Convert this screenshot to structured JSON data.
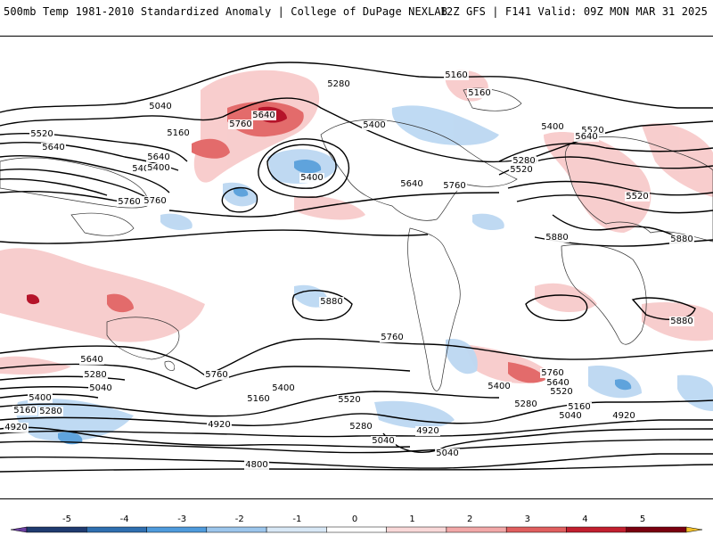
{
  "header": {
    "title": "500mb Temp 1981-2010 Standardized Anomaly | College of DuPage NEXLAB",
    "run_info": "12Z GFS | F141 Valid: 09Z MON MAR 31 2025"
  },
  "map": {
    "variable": "500mb Temp Standardized Anomaly",
    "contour_variable": "500mb height",
    "contour_labels": [
      "5040",
      "5280",
      "5160",
      "5160",
      "5520",
      "5640",
      "5400",
      "5400",
      "5640",
      "5760",
      "5520",
      "5640",
      "5400",
      "5280",
      "5160",
      "5760",
      "5400",
      "5640",
      "5760",
      "5280",
      "5520",
      "5400",
      "5640",
      "5760",
      "5520",
      "5880",
      "5880",
      "5880",
      "5880",
      "5760",
      "5760",
      "5640",
      "5280",
      "5040",
      "5400",
      "5160",
      "4920",
      "5760",
      "5640",
      "5520",
      "5400",
      "5280",
      "5160",
      "5040",
      "4920",
      "4800",
      "4920",
      "5040",
      "5280",
      "5520",
      "5400",
      "5160",
      "5280",
      "5040",
      "4920"
    ]
  },
  "colorbar": {
    "ticks": [
      "-5",
      "-4",
      "-3",
      "-2",
      "-1",
      "0",
      "1",
      "2",
      "3",
      "4",
      "5"
    ],
    "colors": [
      "#6a3fa0",
      "#1f3b70",
      "#2f6fb0",
      "#4f9bdc",
      "#9cc6ec",
      "#d8e8f6",
      "#ffffff",
      "#f9d8d8",
      "#f2a8a8",
      "#e05f5f",
      "#c21f2f",
      "#7a0010",
      "#f2c02a"
    ]
  }
}
